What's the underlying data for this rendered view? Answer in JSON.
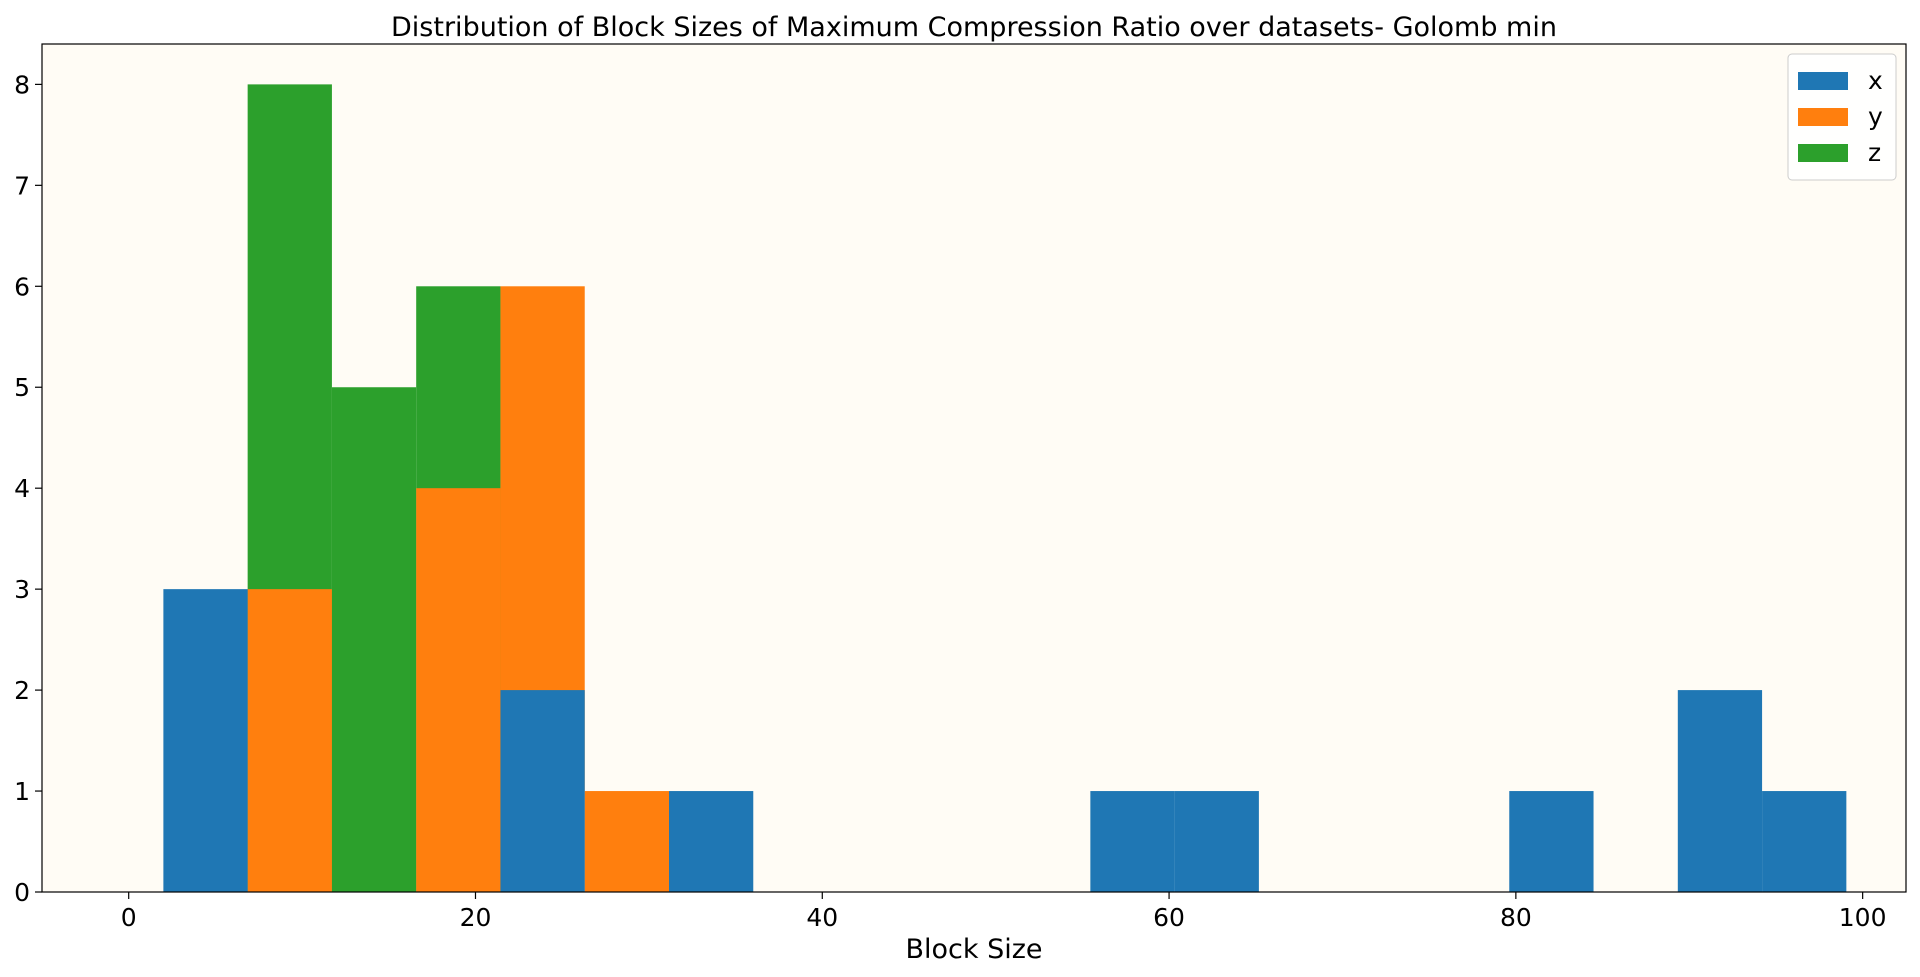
{
  "chart_data": {
    "type": "bar",
    "title": "Distribution of Block Sizes of Maximum Compression Ratio over datasets- Golomb min",
    "xlabel": "Block Size",
    "ylabel": "",
    "xlim": [
      -5,
      102.5
    ],
    "ylim": [
      0,
      8.4
    ],
    "xticks": [
      0,
      20,
      40,
      60,
      80,
      100
    ],
    "yticks": [
      0,
      1,
      2,
      3,
      4,
      5,
      6,
      7,
      8
    ],
    "grid": false,
    "legend_position": "top-right",
    "background_color": "#fffcf5",
    "series": [
      {
        "name": "x",
        "color": "#1f77b4",
        "bins": [
          {
            "x0": 2,
            "x1": 6.86,
            "value": 3
          },
          {
            "x0": 21.44,
            "x1": 26.3,
            "value": 2
          },
          {
            "x0": 31.16,
            "x1": 36.02,
            "value": 1
          },
          {
            "x0": 55.46,
            "x1": 60.32,
            "value": 1
          },
          {
            "x0": 60.32,
            "x1": 65.18,
            "value": 1
          },
          {
            "x0": 79.62,
            "x1": 84.48,
            "value": 1
          },
          {
            "x0": 89.34,
            "x1": 94.2,
            "value": 2
          },
          {
            "x0": 94.2,
            "x1": 99.06,
            "value": 1
          }
        ]
      },
      {
        "name": "y",
        "color": "#ff7f0e",
        "bins": [
          {
            "x0": 6.86,
            "x1": 11.72,
            "value": 3
          },
          {
            "x0": 16.58,
            "x1": 21.44,
            "value": 4
          },
          {
            "x0": 21.44,
            "x1": 26.3,
            "value": 6
          },
          {
            "x0": 26.3,
            "x1": 31.16,
            "value": 1
          }
        ]
      },
      {
        "name": "z",
        "color": "#2ca02c",
        "bins": [
          {
            "x0": 6.86,
            "x1": 11.72,
            "value": 8
          },
          {
            "x0": 11.72,
            "x1": 16.58,
            "value": 5
          },
          {
            "x0": 16.58,
            "x1": 21.44,
            "value": 6
          }
        ]
      }
    ],
    "draw_order": [
      "z",
      "y",
      "x"
    ]
  }
}
